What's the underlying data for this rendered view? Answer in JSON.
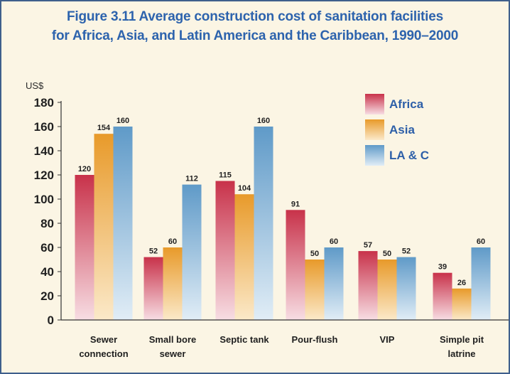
{
  "chart_data": {
    "type": "bar",
    "title_line1": "Figure 3.11  Average construction cost of sanitation facilities",
    "title_line2": "for Africa, Asia, and Latin America and the Caribbean, 1990–2000",
    "ylabel": "US$",
    "ylim": [
      0,
      180
    ],
    "yticks": [
      0,
      20,
      40,
      60,
      80,
      100,
      120,
      140,
      160,
      180
    ],
    "grid": false,
    "legend_position": "top-right",
    "categories": [
      [
        "Sewer",
        "connection"
      ],
      [
        "Small bore",
        "sewer"
      ],
      [
        "Septic tank"
      ],
      [
        "Pour-flush"
      ],
      [
        "VIP"
      ],
      [
        "Simple pit",
        "latrine"
      ]
    ],
    "series": [
      {
        "name": "Africa",
        "color_top": "#c8324a",
        "color_bottom": "#f7dde3",
        "values": [
          120,
          52,
          115,
          91,
          57,
          39
        ]
      },
      {
        "name": "Asia",
        "color_top": "#e89a2a",
        "color_bottom": "#fbe9c9",
        "values": [
          154,
          60,
          104,
          50,
          50,
          26
        ]
      },
      {
        "name": "LA & C",
        "color_top": "#5f9ac8",
        "color_bottom": "#e1edf6",
        "values": [
          160,
          112,
          160,
          60,
          52,
          60
        ]
      }
    ]
  }
}
